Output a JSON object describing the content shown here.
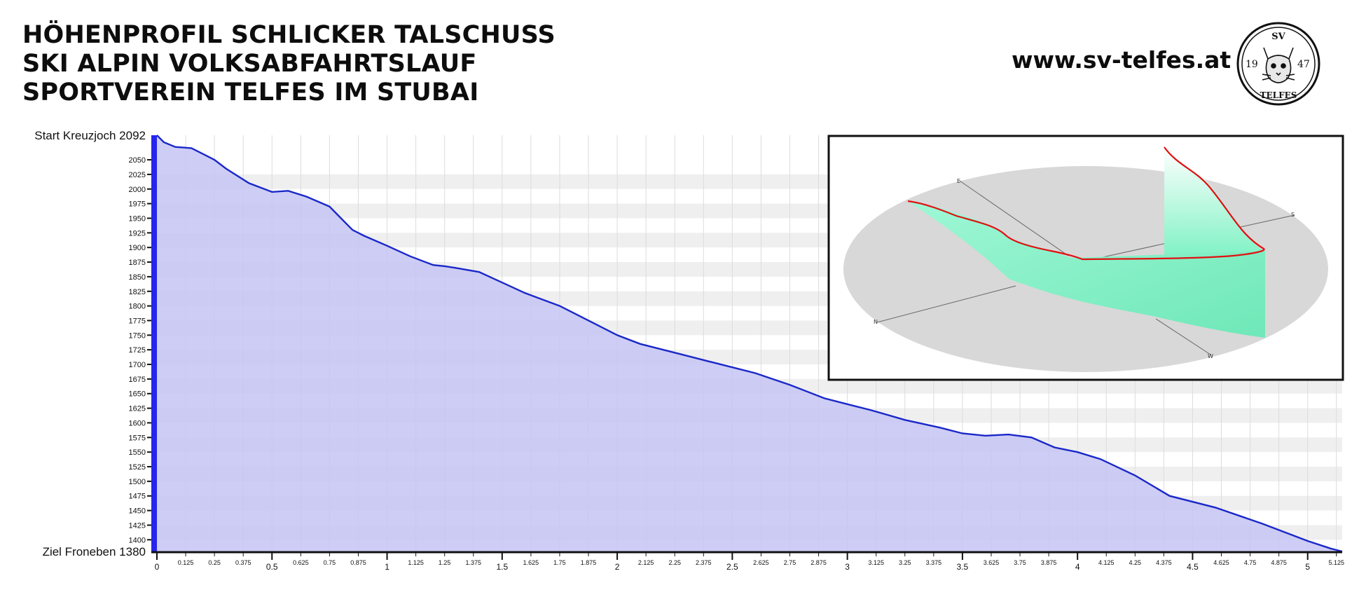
{
  "header": {
    "title_lines": [
      "HÖHENPROFIL SCHLICKER TALSCHUSS",
      "SKI ALPIN VOLKSABFAHRTSLAUF",
      "SPORTVEREIN TELFES IM STUBAI"
    ],
    "website": "www.sv-telfes.at"
  },
  "logo": {
    "top_text": "SV",
    "left_text": "19",
    "right_text": "47",
    "bottom_text": "TELFES",
    "icon": "lynx-head-icon"
  },
  "colors": {
    "fill": "#c4c4f4",
    "line": "#1a28c8",
    "axis_bar": "#2525ee",
    "band": "#efefef",
    "route_3d": "#e01010",
    "surface_3d": "#7ef2c4",
    "ground_3d": "#d8d8d8"
  },
  "chart_data": {
    "type": "area",
    "title": "",
    "xlabel": "",
    "ylabel": "",
    "xlim": [
      0,
      5.15
    ],
    "ylim": [
      1380,
      2092
    ],
    "start_label": "Start Kreuzjoch 2092",
    "end_label": "Ziel Froneben 1380",
    "x_major_ticks": [
      "0",
      "0.5",
      "1",
      "1.5",
      "2",
      "2.5",
      "3",
      "3.5",
      "4",
      "4.5",
      "5"
    ],
    "x_minor_ticks": [
      "0.125",
      "0.25",
      "0.375",
      "0.625",
      "0.75",
      "0.875",
      "1.125",
      "1.25",
      "1.375",
      "1.625",
      "1.75",
      "1.875",
      "2.125",
      "2.25",
      "2.375",
      "2.625",
      "2.75",
      "2.875",
      "3.125",
      "3.25",
      "3.375",
      "3.625",
      "3.75",
      "3.875",
      "4.125",
      "4.25",
      "4.375",
      "4.625",
      "4.75",
      "4.875",
      "5.125"
    ],
    "y_ticks": [
      "1400",
      "1425",
      "1450",
      "1475",
      "1500",
      "1525",
      "1550",
      "1575",
      "1600",
      "1625",
      "1650",
      "1675",
      "1700",
      "1725",
      "1750",
      "1775",
      "1800",
      "1825",
      "1850",
      "1875",
      "1900",
      "1925",
      "1950",
      "1975",
      "2000",
      "2025",
      "2050"
    ],
    "grid": "alternating horizontal bands",
    "series": [
      {
        "x": [
          0,
          0.03,
          0.08,
          0.15,
          0.2,
          0.25,
          0.3,
          0.4,
          0.5,
          0.57,
          0.65,
          0.75,
          0.8,
          0.85,
          0.9,
          1.0,
          1.1,
          1.2,
          1.25,
          1.3,
          1.4,
          1.5,
          1.6,
          1.75,
          1.9,
          2.0,
          2.1,
          2.25,
          2.4,
          2.5,
          2.6,
          2.75,
          2.9,
          3.0,
          3.1,
          3.25,
          3.4,
          3.5,
          3.6,
          3.7,
          3.8,
          3.9,
          4.0,
          4.1,
          4.25,
          4.4,
          4.6,
          4.8,
          5.0,
          5.1,
          5.15
        ],
        "y": [
          2092,
          2080,
          2072,
          2070,
          2060,
          2050,
          2035,
          2010,
          1995,
          1997,
          1987,
          1970,
          1950,
          1930,
          1920,
          1903,
          1885,
          1870,
          1868,
          1865,
          1858,
          1840,
          1822,
          1800,
          1770,
          1750,
          1735,
          1720,
          1705,
          1695,
          1685,
          1665,
          1642,
          1632,
          1622,
          1605,
          1592,
          1582,
          1578,
          1580,
          1575,
          1558,
          1550,
          1538,
          1510,
          1475,
          1455,
          1428,
          1398,
          1385,
          1380
        ]
      }
    ]
  },
  "view_3d": {
    "compass": [
      "E",
      "S",
      "N",
      "W"
    ]
  }
}
